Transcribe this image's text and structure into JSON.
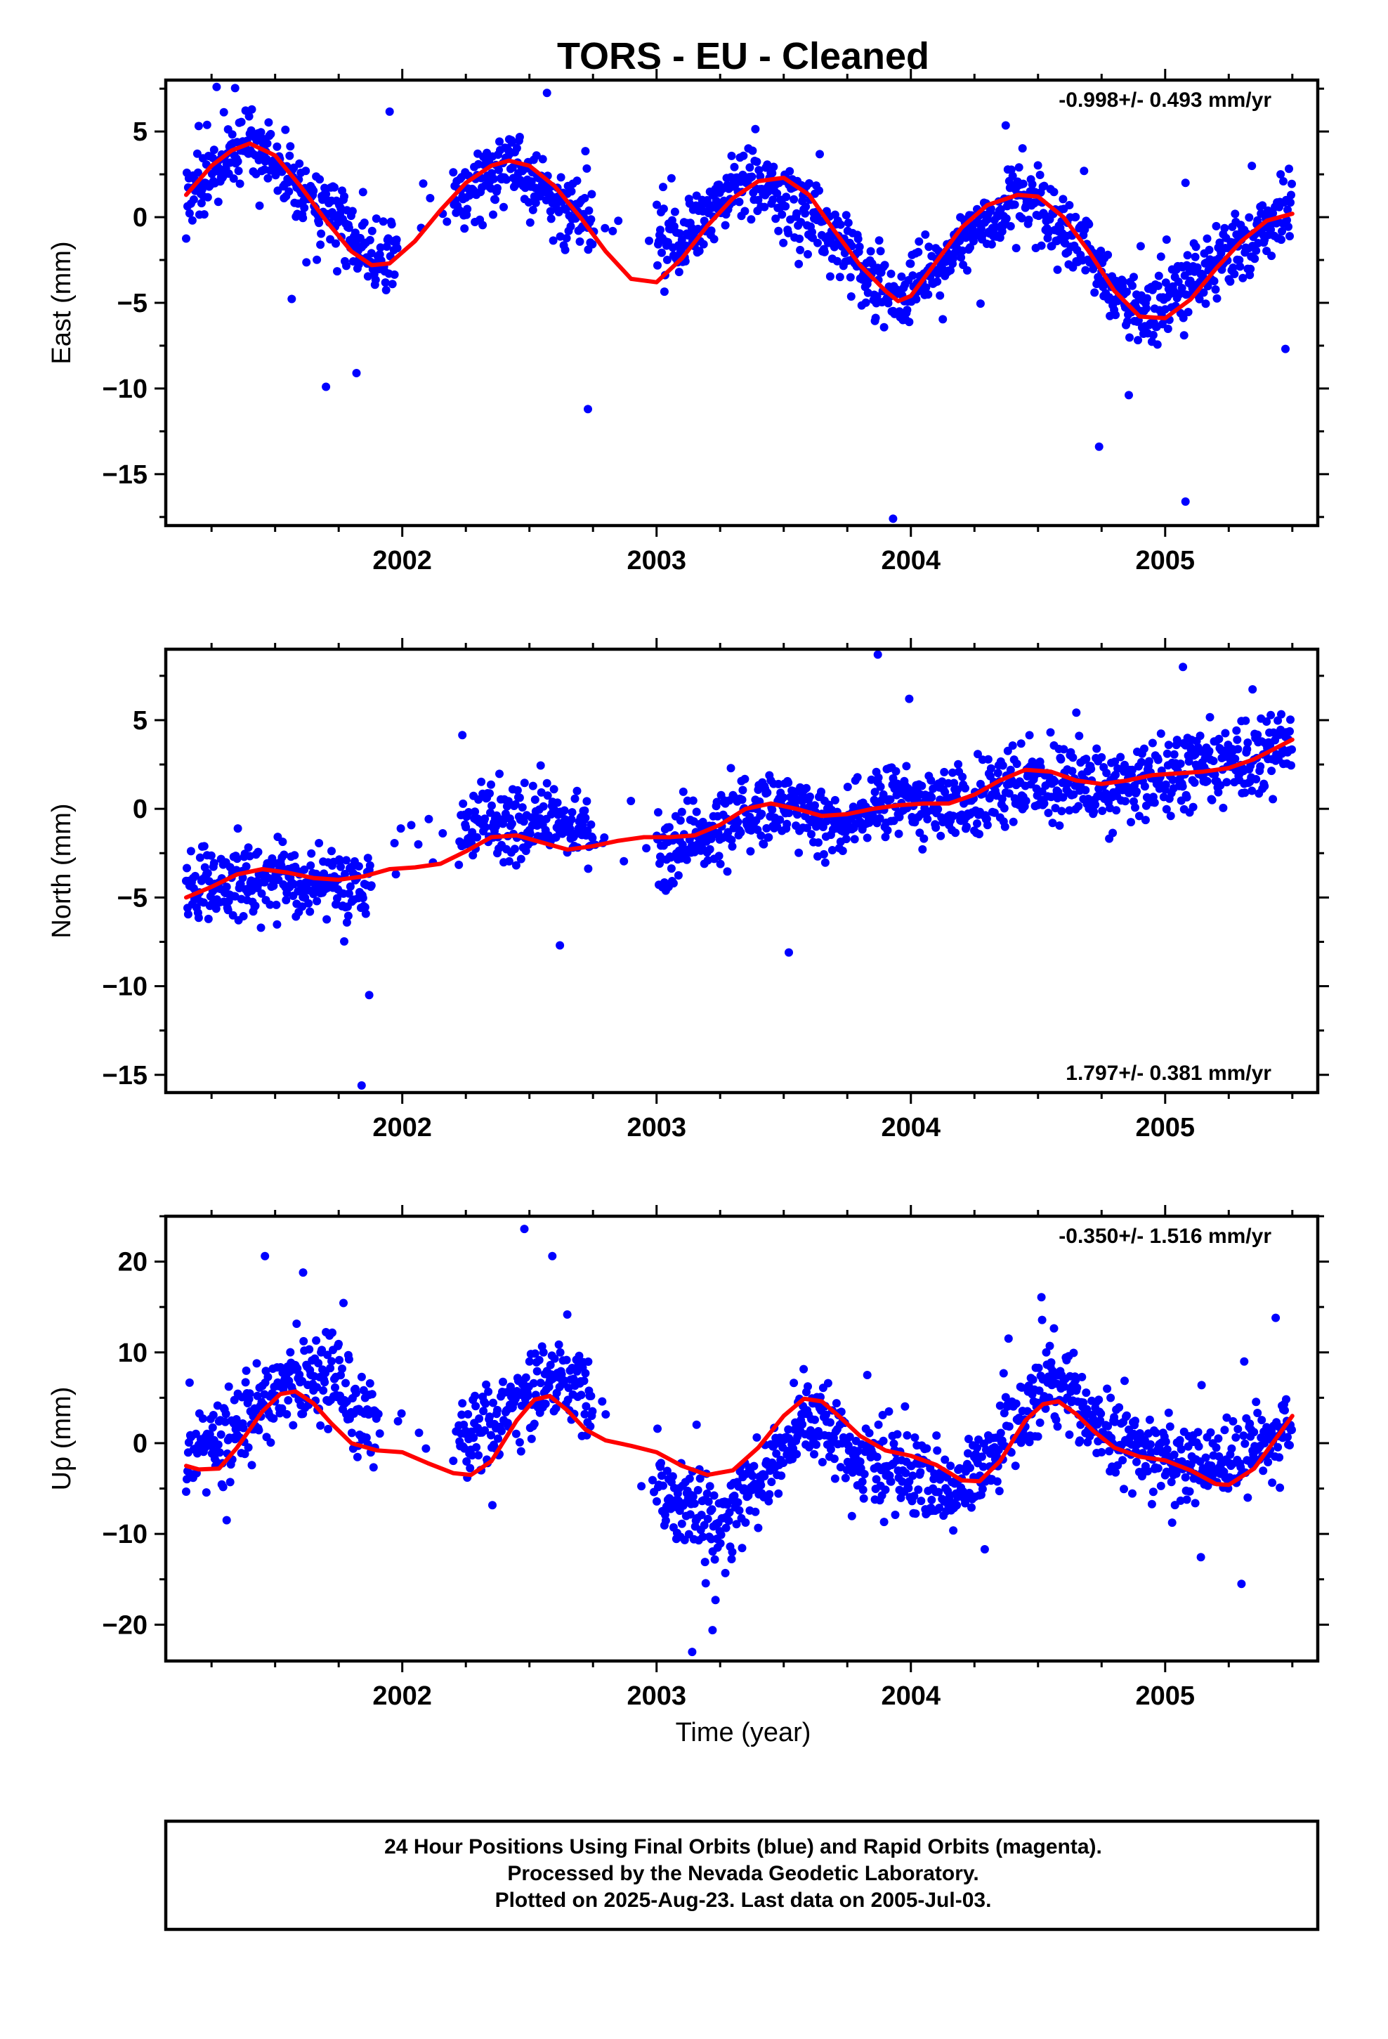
{
  "page": {
    "title": "TORS  - EU - Cleaned",
    "xlabel": "Time (year)",
    "caption": [
      "24 Hour Positions Using Final Orbits (blue) and Rapid Orbits (magenta).",
      "Processed by the Nevada Geodetic Laboratory.",
      "Plotted on 2025-Aug-23. Last data on 2005-Jul-03."
    ]
  },
  "colors": {
    "final_orbits": "#0000ff",
    "fit": "#ff0000",
    "frame": "#000000"
  },
  "chart_data": [
    {
      "type": "scatter",
      "title": "TORS  - EU - Cleaned",
      "ylabel": "East (mm)",
      "xlim": [
        2001.07,
        2005.6
      ],
      "ylim": [
        -18.0,
        8.0
      ],
      "xticks": [
        2002,
        2003,
        2004,
        2005
      ],
      "xtick_labels": [
        "2002",
        "2003",
        "2004",
        "2005"
      ],
      "yticks": [
        5,
        0,
        -5,
        -10,
        -15
      ],
      "ytick_labels": [
        "5",
        "0",
        "−5",
        "−10",
        "−15"
      ],
      "rate_label": "-0.998+/- 0.493 mm/yr",
      "rate_position": "top-right",
      "series": [
        {
          "role": "final-orbit-positions",
          "color": "#0000ff",
          "mode": "points",
          "data_span": [
            2001.15,
            2005.5
          ],
          "gaps": [
            [
              2001.98,
              2002.2
            ],
            [
              2002.75,
              2003.0
            ]
          ],
          "summary_points": [
            [
              2001.15,
              1.3
            ],
            [
              2001.4,
              4.3
            ],
            [
              2001.65,
              1.0
            ],
            [
              2001.88,
              -2.8
            ],
            [
              2002.25,
              1.5
            ],
            [
              2002.42,
              3.3
            ],
            [
              2002.65,
              0.5
            ],
            [
              2003.05,
              -1.5
            ],
            [
              2003.38,
              2.4
            ],
            [
              2003.65,
              -0.5
            ],
            [
              2003.95,
              -4.9
            ],
            [
              2004.2,
              -1.5
            ],
            [
              2004.42,
              1.3
            ],
            [
              2004.65,
              -1.5
            ],
            [
              2004.9,
              -6.0
            ],
            [
              2005.2,
              -2.5
            ],
            [
              2005.47,
              0.2
            ]
          ],
          "outliers": [
            [
              2001.27,
              7.6
            ],
            [
              2001.7,
              -9.9
            ],
            [
              2001.82,
              -9.1
            ],
            [
              2002.73,
              -11.2
            ],
            [
              2003.93,
              -17.6
            ],
            [
              2004.74,
              -13.4
            ],
            [
              2005.08,
              -16.6
            ]
          ]
        },
        {
          "role": "fit",
          "color": "#ff0000",
          "mode": "line",
          "x": [
            2001.15,
            2001.25,
            2001.33,
            2001.4,
            2001.5,
            2001.6,
            2001.7,
            2001.8,
            2001.88,
            2001.95,
            2002.05,
            2002.15,
            2002.25,
            2002.35,
            2002.42,
            2002.5,
            2002.6,
            2002.7,
            2002.8,
            2002.9,
            2003.0,
            2003.1,
            2003.2,
            2003.3,
            2003.4,
            2003.5,
            2003.6,
            2003.7,
            2003.8,
            2003.9,
            2003.95,
            2004.0,
            2004.1,
            2004.2,
            2004.3,
            2004.42,
            2004.5,
            2004.6,
            2004.7,
            2004.8,
            2004.9,
            2005.0,
            2005.1,
            2005.2,
            2005.3,
            2005.4,
            2005.5
          ],
          "y": [
            1.3,
            3.0,
            3.9,
            4.3,
            3.6,
            1.8,
            -0.2,
            -2.0,
            -2.8,
            -2.7,
            -1.4,
            0.4,
            2.0,
            3.0,
            3.3,
            3.0,
            1.8,
            0.0,
            -2.0,
            -3.6,
            -3.8,
            -2.4,
            -0.5,
            1.1,
            2.1,
            2.3,
            1.3,
            -0.8,
            -2.8,
            -4.3,
            -4.9,
            -4.6,
            -2.6,
            -0.6,
            0.7,
            1.3,
            1.2,
            0.0,
            -2.0,
            -4.3,
            -5.8,
            -5.9,
            -4.8,
            -3.0,
            -1.4,
            -0.2,
            0.2
          ]
        }
      ]
    },
    {
      "type": "scatter",
      "ylabel": "North (mm)",
      "xlim": [
        2001.07,
        2005.6
      ],
      "ylim": [
        -16.0,
        9.0
      ],
      "xticks": [
        2002,
        2003,
        2004,
        2005
      ],
      "xtick_labels": [
        "2002",
        "2003",
        "2004",
        "2005"
      ],
      "yticks": [
        5,
        0,
        -5,
        -10,
        -15
      ],
      "ytick_labels": [
        "5",
        "0",
        "−5",
        "−10",
        "−15"
      ],
      "rate_label": "1.797+/- 0.381 mm/yr",
      "rate_position": "bottom-right",
      "series": [
        {
          "role": "final-orbit-positions",
          "color": "#0000ff",
          "mode": "points",
          "data_span": [
            2001.15,
            2005.5
          ],
          "gaps": [
            [
              2001.88,
              2002.22
            ],
            [
              2002.75,
              2003.0
            ]
          ],
          "summary_points": [
            [
              2001.15,
              -4.3
            ],
            [
              2001.5,
              -4.0
            ],
            [
              2001.8,
              -4.8
            ],
            [
              2002.3,
              -0.8
            ],
            [
              2002.55,
              -0.5
            ],
            [
              2002.7,
              -1.0
            ],
            [
              2003.05,
              -2.5
            ],
            [
              2003.3,
              -0.5
            ],
            [
              2003.5,
              0.2
            ],
            [
              2003.7,
              -0.8
            ],
            [
              2003.95,
              0.6
            ],
            [
              2004.2,
              0.0
            ],
            [
              2004.45,
              1.8
            ],
            [
              2004.75,
              1.3
            ],
            [
              2005.0,
              2.1
            ],
            [
              2005.3,
              2.5
            ],
            [
              2005.48,
              3.5
            ]
          ],
          "outliers": [
            [
              2001.84,
              -15.6
            ],
            [
              2003.87,
              8.7
            ],
            [
              2005.07,
              8.0
            ],
            [
              2003.52,
              -8.1
            ],
            [
              2002.62,
              -7.7
            ],
            [
              2001.87,
              -10.5
            ]
          ]
        },
        {
          "role": "fit",
          "color": "#ff0000",
          "mode": "line",
          "x": [
            2001.15,
            2001.25,
            2001.35,
            2001.45,
            2001.55,
            2001.65,
            2001.75,
            2001.85,
            2001.95,
            2002.05,
            2002.15,
            2002.25,
            2002.35,
            2002.45,
            2002.55,
            2002.65,
            2002.75,
            2002.85,
            2002.95,
            2003.05,
            2003.15,
            2003.25,
            2003.35,
            2003.45,
            2003.55,
            2003.65,
            2003.75,
            2003.85,
            2003.95,
            2004.05,
            2004.15,
            2004.25,
            2004.35,
            2004.45,
            2004.55,
            2004.65,
            2004.75,
            2004.85,
            2004.95,
            2005.05,
            2005.15,
            2005.25,
            2005.35,
            2005.5
          ],
          "y": [
            -5.0,
            -4.4,
            -3.7,
            -3.4,
            -3.6,
            -3.9,
            -4.0,
            -3.8,
            -3.4,
            -3.3,
            -3.1,
            -2.4,
            -1.6,
            -1.5,
            -1.9,
            -2.3,
            -2.1,
            -1.8,
            -1.6,
            -1.6,
            -1.5,
            -0.9,
            0.0,
            0.3,
            0.0,
            -0.4,
            -0.3,
            0.0,
            0.2,
            0.3,
            0.3,
            0.8,
            1.6,
            2.2,
            2.1,
            1.6,
            1.4,
            1.6,
            1.9,
            2.0,
            2.1,
            2.3,
            2.8,
            3.9
          ]
        }
      ]
    },
    {
      "type": "scatter",
      "ylabel": "Up (mm)",
      "xlim": [
        2001.07,
        2005.6
      ],
      "ylim": [
        -24.0,
        25.0
      ],
      "xticks": [
        2002,
        2003,
        2004,
        2005
      ],
      "xtick_labels": [
        "2002",
        "2003",
        "2004",
        "2005"
      ],
      "yticks": [
        20,
        10,
        0,
        -10,
        -20
      ],
      "ytick_labels": [
        "20",
        "10",
        "0",
        "−10",
        "−20"
      ],
      "rate_label": "-0.350+/- 1.516 mm/yr",
      "rate_position": "top-right",
      "series": [
        {
          "role": "final-orbit-positions",
          "color": "#0000ff",
          "mode": "points",
          "data_span": [
            2001.15,
            2005.5
          ],
          "gaps": [
            [
              2001.9,
              2002.22
            ],
            [
              2002.75,
              2003.0
            ]
          ],
          "summary_points": [
            [
              2001.15,
              -2.0
            ],
            [
              2001.35,
              2.0
            ],
            [
              2001.55,
              6.5
            ],
            [
              2001.7,
              8.0
            ],
            [
              2001.85,
              2.5
            ],
            [
              2002.3,
              0.5
            ],
            [
              2002.5,
              6.0
            ],
            [
              2002.65,
              7.0
            ],
            [
              2003.05,
              -5.5
            ],
            [
              2003.25,
              -9.0
            ],
            [
              2003.45,
              -3.0
            ],
            [
              2003.6,
              3.0
            ],
            [
              2003.8,
              -2.0
            ],
            [
              2004.0,
              -3.0
            ],
            [
              2004.2,
              -5.0
            ],
            [
              2004.4,
              2.0
            ],
            [
              2004.55,
              7.5
            ],
            [
              2004.75,
              1.5
            ],
            [
              2005.0,
              -1.5
            ],
            [
              2005.25,
              -3.0
            ],
            [
              2005.45,
              2.0
            ]
          ],
          "outliers": [
            [
              2002.48,
              23.6
            ],
            [
              2001.46,
              20.6
            ],
            [
              2003.14,
              -23.0
            ],
            [
              2001.61,
              18.8
            ],
            [
              2002.59,
              20.6
            ],
            [
              2003.22,
              -20.6
            ],
            [
              2005.3,
              -15.5
            ]
          ]
        },
        {
          "role": "fit",
          "color": "#ff0000",
          "mode": "line",
          "x": [
            2001.15,
            2001.2,
            2001.28,
            2001.35,
            2001.45,
            2001.52,
            2001.58,
            2001.65,
            2001.72,
            2001.8,
            2001.9,
            2002.0,
            2002.1,
            2002.2,
            2002.27,
            2002.35,
            2002.45,
            2002.52,
            2002.58,
            2002.65,
            2002.72,
            2002.8,
            2002.9,
            2003.0,
            2003.1,
            2003.2,
            2003.3,
            2003.4,
            2003.5,
            2003.58,
            2003.65,
            2003.72,
            2003.8,
            2003.9,
            2004.0,
            2004.1,
            2004.2,
            2004.27,
            2004.35,
            2004.45,
            2004.52,
            2004.58,
            2004.65,
            2004.72,
            2004.8,
            2004.9,
            2005.0,
            2005.1,
            2005.2,
            2005.25,
            2005.35,
            2005.5
          ],
          "y": [
            -2.5,
            -2.9,
            -2.8,
            -0.5,
            3.5,
            5.4,
            5.7,
            4.4,
            2.2,
            0.0,
            -0.8,
            -1.0,
            -2.2,
            -3.3,
            -3.5,
            -2.0,
            2.5,
            4.8,
            5.2,
            3.6,
            1.5,
            0.3,
            -0.3,
            -1.0,
            -2.5,
            -3.5,
            -3.0,
            -0.5,
            3.0,
            4.9,
            4.6,
            2.9,
            0.8,
            -0.8,
            -1.4,
            -2.4,
            -4.1,
            -4.2,
            -2.0,
            2.5,
            4.3,
            4.6,
            3.2,
            1.3,
            -0.5,
            -1.5,
            -1.9,
            -3.0,
            -4.5,
            -4.6,
            -2.8,
            3.0
          ]
        }
      ]
    }
  ]
}
